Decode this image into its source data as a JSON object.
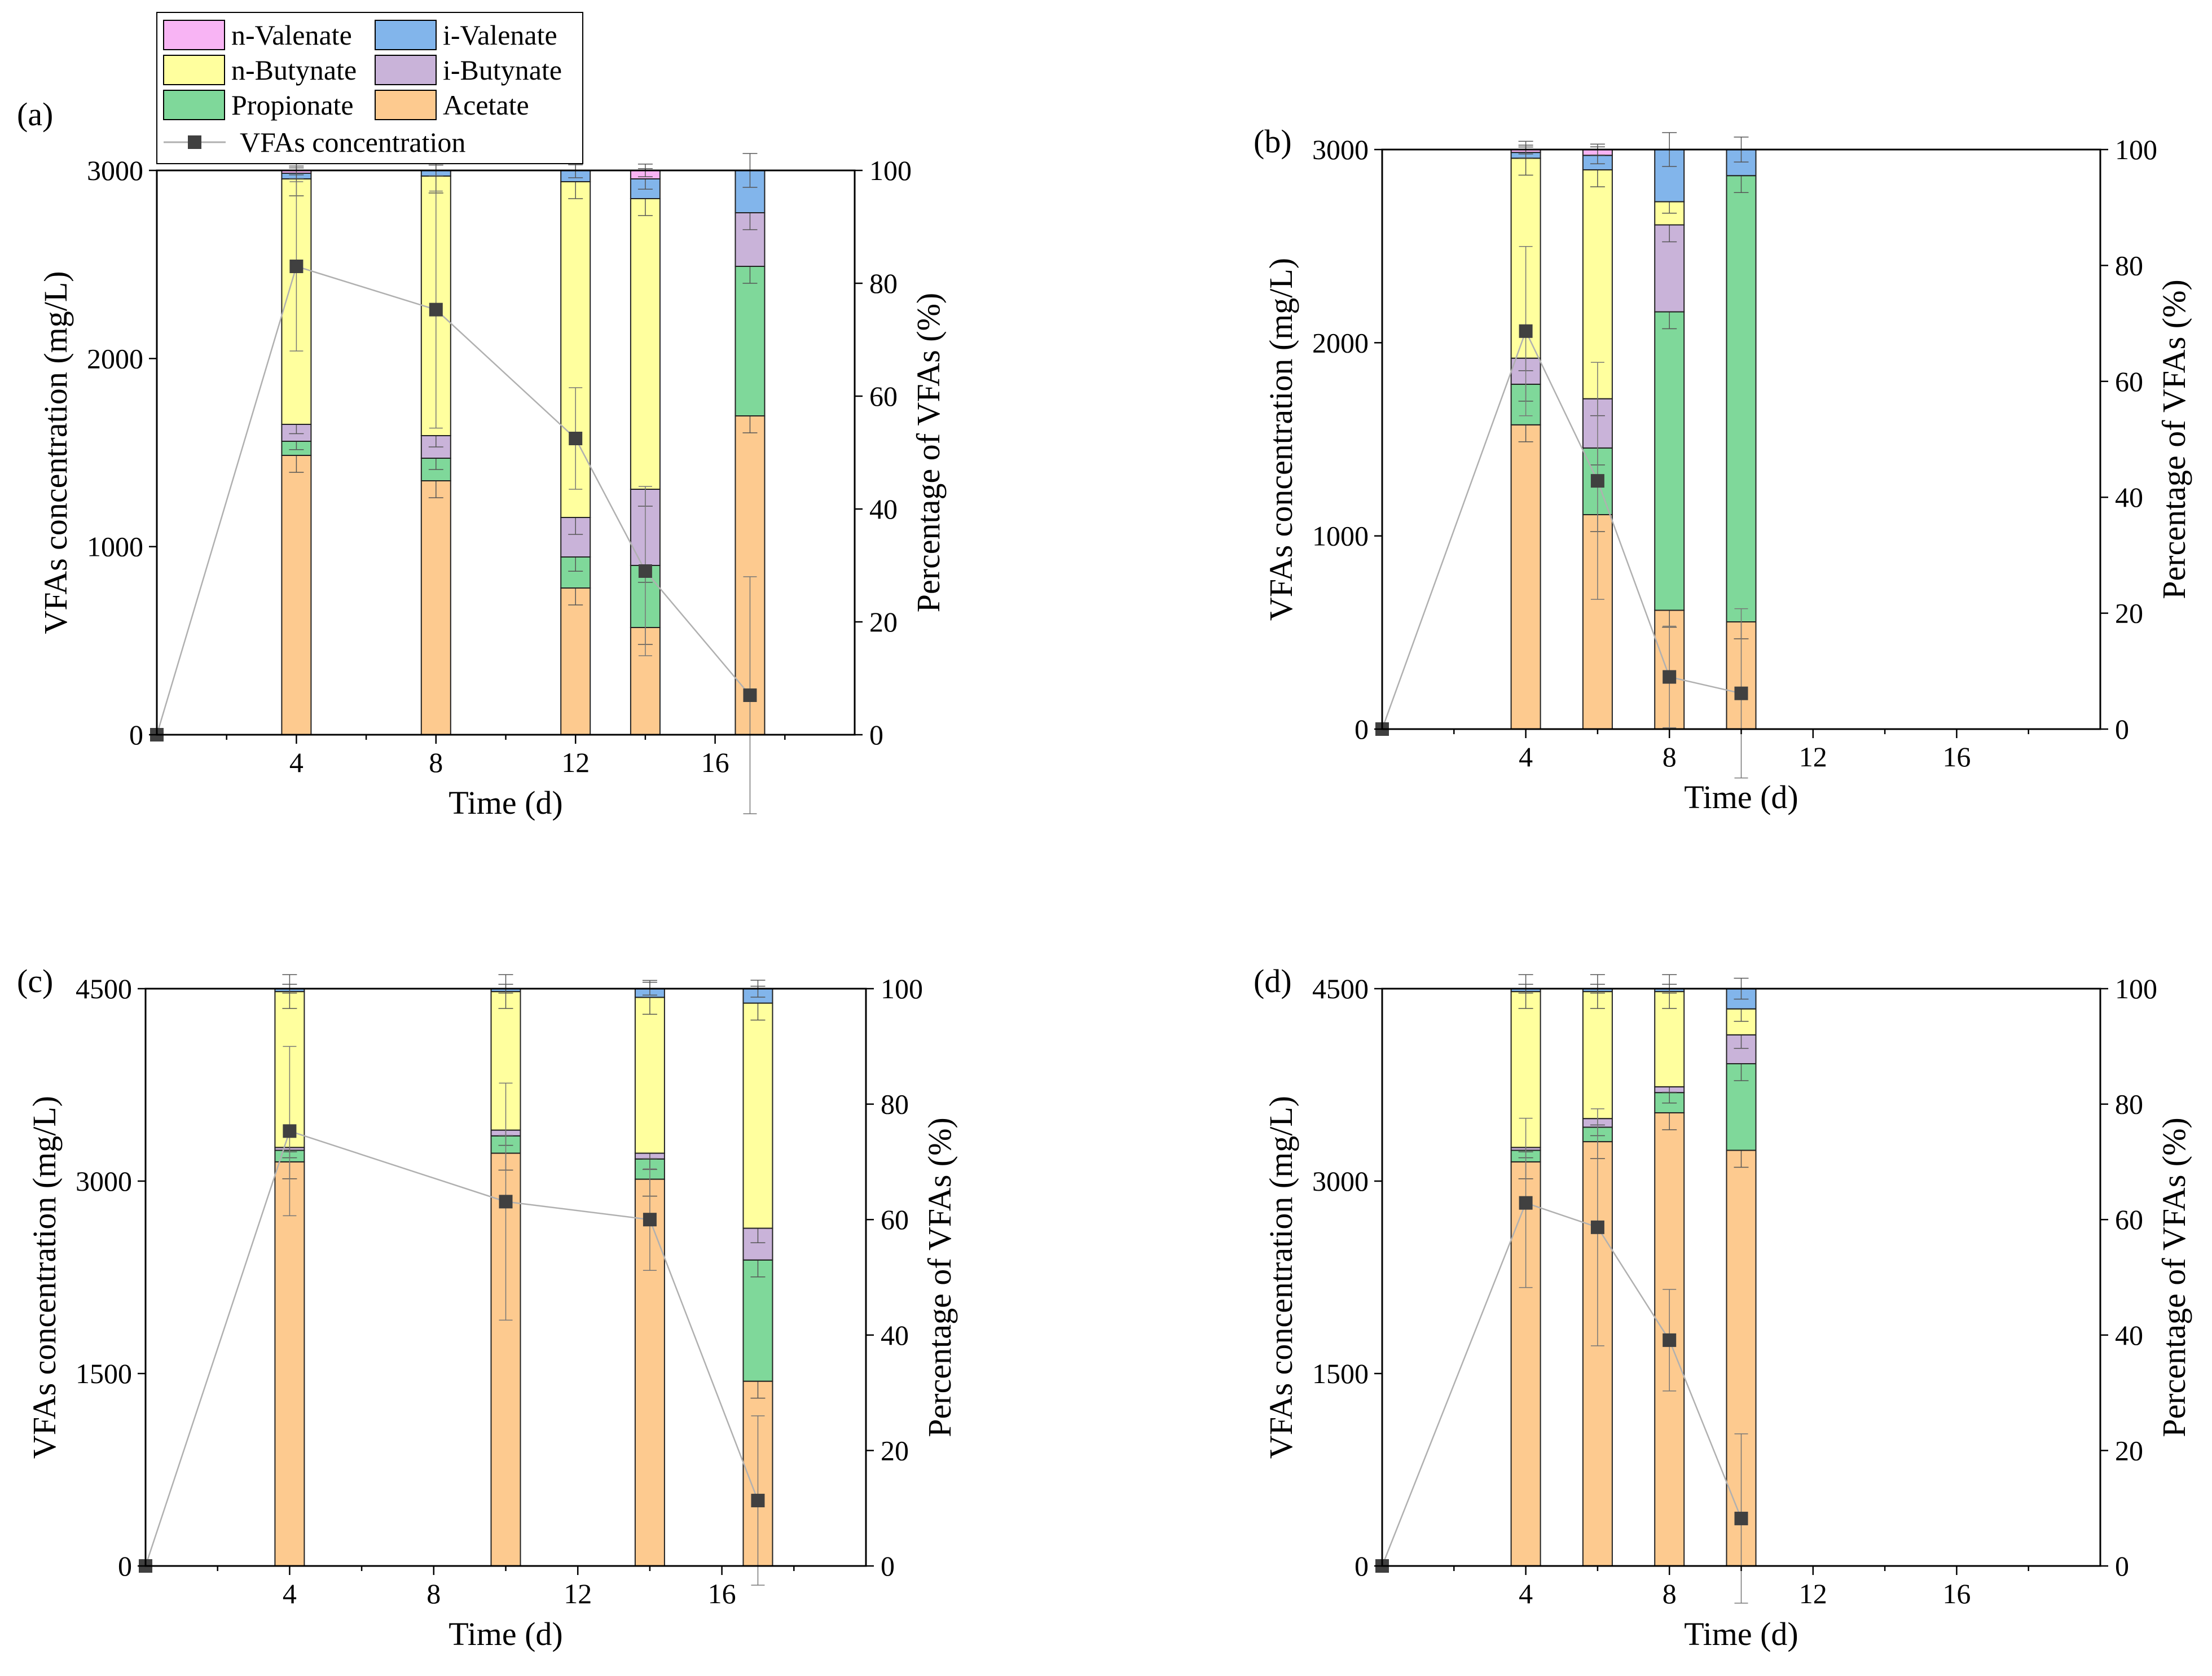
{
  "legend": {
    "entries": [
      {
        "key": "nval",
        "label": "n-Valenate"
      },
      {
        "key": "ival",
        "label": "i-Valenate"
      },
      {
        "key": "nbut",
        "label": "n-Butynate"
      },
      {
        "key": "ibut",
        "label": "i-Butynate"
      },
      {
        "key": "prop",
        "label": "Propionate"
      },
      {
        "key": "acet",
        "label": "Acetate"
      }
    ],
    "line_label": "VFAs concentration"
  },
  "colors": {
    "acet": "#FDCA8F",
    "prop": "#7FD89A",
    "ibut": "#C9B3D9",
    "nbut": "#FFFF9E",
    "ival": "#82B5EB",
    "nval": "#F8B4F4",
    "line": "#B0B0B0",
    "marker": "#404040"
  },
  "chart_data": [
    {
      "type": "bar",
      "panel_label": "(a)",
      "xlabel": "Time (d)",
      "ylabel_left": "VFAs concentration (mg/L)",
      "ylabel_right": "Percentage of VFAs (%)",
      "xlim": [
        0,
        20
      ],
      "xticks": [
        4,
        8,
        12,
        16
      ],
      "ylim_left": [
        0,
        3000
      ],
      "yticks_left": [
        0,
        1000,
        2000,
        3000
      ],
      "ylim_right": [
        0,
        100
      ],
      "yticks_right": [
        0,
        20,
        40,
        60,
        80,
        100
      ],
      "stack_order": [
        "acet",
        "prop",
        "ibut",
        "nbut",
        "ival",
        "nval"
      ],
      "bars": [
        {
          "x": 4,
          "values": [
            49.5,
            2.5,
            3,
            43.5,
            1,
            0.5
          ]
        },
        {
          "x": 8,
          "values": [
            45,
            4,
            4,
            46,
            1,
            0
          ]
        },
        {
          "x": 12,
          "values": [
            26,
            5.5,
            7,
            59.5,
            2,
            0
          ]
        },
        {
          "x": 14,
          "values": [
            19,
            11,
            13.5,
            51.5,
            3.5,
            1.5
          ]
        },
        {
          "x": 17,
          "values": [
            56.5,
            26.5,
            9.5,
            0,
            7.5,
            0
          ]
        }
      ],
      "line": {
        "x": [
          0,
          4,
          8,
          12,
          14,
          17
        ],
        "y": [
          0,
          2490,
          2260,
          1575,
          870,
          210
        ]
      }
    },
    {
      "type": "bar",
      "panel_label": "(b)",
      "xlabel": "Time (d)",
      "ylabel_left": "VFAs concentration (mg/L)",
      "ylabel_right": "Percentage of VFAs (%)",
      "xlim": [
        0,
        20
      ],
      "xticks": [
        4,
        8,
        12,
        16
      ],
      "ylim_left": [
        0,
        3000
      ],
      "yticks_left": [
        0,
        1000,
        2000,
        3000
      ],
      "ylim_right": [
        0,
        100
      ],
      "yticks_right": [
        0,
        20,
        40,
        60,
        80,
        100
      ],
      "stack_order": [
        "acet",
        "prop",
        "ibut",
        "nbut",
        "ival",
        "nval"
      ],
      "bars": [
        {
          "x": 4,
          "values": [
            52.5,
            7,
            4.5,
            34.5,
            1,
            0.5
          ]
        },
        {
          "x": 6,
          "values": [
            37,
            11.5,
            8.5,
            39.5,
            2.5,
            1
          ]
        },
        {
          "x": 8,
          "values": [
            20.5,
            51.5,
            15,
            4,
            9,
            0
          ]
        },
        {
          "x": 10,
          "values": [
            18.5,
            77,
            0,
            0,
            4.5,
            0
          ]
        }
      ],
      "line": {
        "x": [
          0,
          4,
          6,
          8,
          10
        ],
        "y": [
          0,
          2060,
          1285,
          270,
          185
        ]
      }
    },
    {
      "type": "bar",
      "panel_label": "(c)",
      "xlabel": "Time (d)",
      "ylabel_left": "VFAs concentration (mg/L)",
      "ylabel_right": "Percentage of VFAs (%)",
      "xlim": [
        0,
        20
      ],
      "xticks": [
        4,
        8,
        12,
        16
      ],
      "ylim_left": [
        0,
        4500
      ],
      "yticks_left": [
        0,
        1500,
        3000,
        4500
      ],
      "ylim_right": [
        0,
        100
      ],
      "yticks_right": [
        0,
        20,
        40,
        60,
        80,
        100
      ],
      "stack_order": [
        "acet",
        "prop",
        "ibut",
        "nbut",
        "ival",
        "nval"
      ],
      "bars": [
        {
          "x": 4,
          "values": [
            70,
            2,
            0.5,
            27,
            0.5,
            0
          ]
        },
        {
          "x": 10,
          "values": [
            71.5,
            3,
            1,
            24,
            0.5,
            0
          ]
        },
        {
          "x": 14,
          "values": [
            67,
            3.5,
            1,
            27,
            1.5,
            0
          ]
        },
        {
          "x": 17,
          "values": [
            32,
            21,
            5.5,
            39,
            2.5,
            0
          ]
        }
      ],
      "line": {
        "x": [
          0,
          4,
          10,
          14,
          17
        ],
        "y": [
          0,
          3390,
          2840,
          2700,
          510
        ]
      }
    },
    {
      "type": "bar",
      "panel_label": "(d)",
      "xlabel": "Time (d)",
      "ylabel_left": "VFAs concentration (mg/L)",
      "ylabel_right": "Percentage of VFAs (%)",
      "xlim": [
        0,
        20
      ],
      "xticks": [
        4,
        8,
        12,
        16
      ],
      "ylim_left": [
        0,
        4500
      ],
      "yticks_left": [
        0,
        1500,
        3000,
        4500
      ],
      "ylim_right": [
        0,
        100
      ],
      "yticks_right": [
        0,
        20,
        40,
        60,
        80,
        100
      ],
      "stack_order": [
        "acet",
        "prop",
        "ibut",
        "nbut",
        "ival",
        "nval"
      ],
      "bars": [
        {
          "x": 4,
          "values": [
            70,
            2,
            0.5,
            27,
            0.5,
            0
          ]
        },
        {
          "x": 6,
          "values": [
            73.5,
            2.5,
            1.5,
            22,
            0.5,
            0
          ]
        },
        {
          "x": 8,
          "values": [
            78.5,
            3.5,
            1,
            16.5,
            0.5,
            0
          ]
        },
        {
          "x": 10,
          "values": [
            72,
            15,
            5,
            4.5,
            3.5,
            0
          ]
        }
      ],
      "line": {
        "x": [
          0,
          4,
          6,
          8,
          10
        ],
        "y": [
          0,
          2830,
          2640,
          1760,
          370
        ]
      }
    }
  ]
}
